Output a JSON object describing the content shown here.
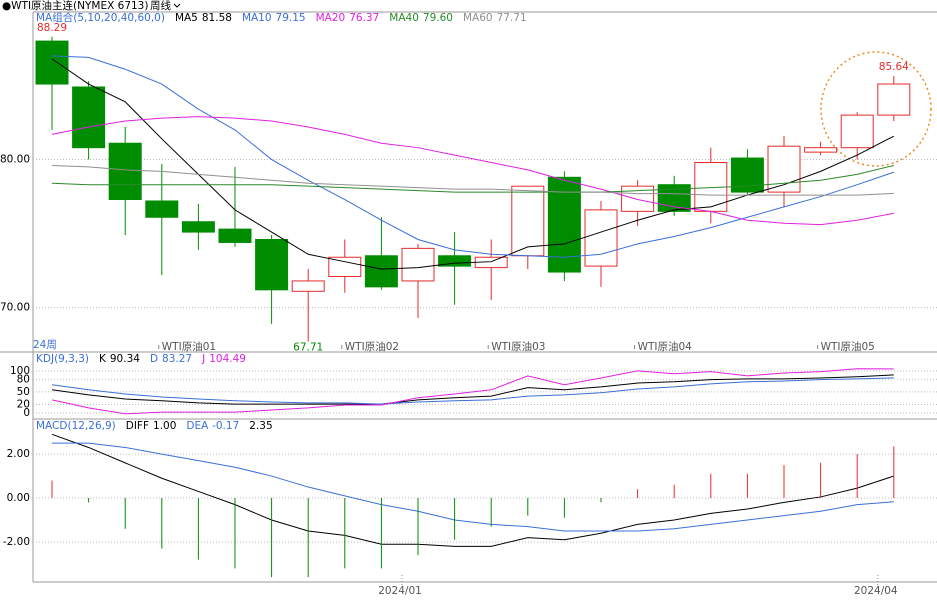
{
  "header": {
    "instrument": "●WTI原油主连(NYMEX 6713)",
    "period": "周线"
  },
  "chart_data": [
    {
      "type": "candlestick",
      "title": "MA组合(5,10,20,40,60,0)",
      "period_label": "24周",
      "categories": [
        null,
        null,
        null,
        "WTI原油01",
        null,
        null,
        null,
        null,
        "WTI原油02",
        null,
        null,
        null,
        "WTI原油03",
        null,
        null,
        null,
        "WTI原油04",
        null,
        null,
        null,
        null,
        "WTI原油05",
        null,
        null
      ],
      "open": [
        88.0,
        84.9,
        81.1,
        77.2,
        75.8,
        75.3,
        74.6,
        71.1,
        72.1,
        73.5,
        71.8,
        73.5,
        72.7,
        73.5,
        78.8,
        72.8,
        76.5,
        78.3,
        76.5,
        80.1,
        77.8,
        80.5,
        80.8,
        83.0
      ],
      "high": [
        88.29,
        85.3,
        82.2,
        79.7,
        77.0,
        79.5,
        74.9,
        72.6,
        74.6,
        76.1,
        74.3,
        75.1,
        74.6,
        78.2,
        79.2,
        77.2,
        78.6,
        78.9,
        80.8,
        80.7,
        81.6,
        81.2,
        83.2,
        85.64
      ],
      "low": [
        82.0,
        80.0,
        74.9,
        72.2,
        73.9,
        74.1,
        68.9,
        67.71,
        71.0,
        71.2,
        69.3,
        70.2,
        70.5,
        72.6,
        71.8,
        71.4,
        75.5,
        76.2,
        75.7,
        77.6,
        76.8,
        80.3,
        80.0,
        82.6
      ],
      "close": [
        85.1,
        80.8,
        77.3,
        76.1,
        75.1,
        74.4,
        71.2,
        71.8,
        73.4,
        71.4,
        74.0,
        72.8,
        73.4,
        78.2,
        72.4,
        76.6,
        78.2,
        76.5,
        79.8,
        77.8,
        80.9,
        80.8,
        83.0,
        85.1
      ],
      "up_color": "#e32b2b",
      "down_color": "#008c00",
      "series": [
        {
          "name": "MA5",
          "last_label": "81.58",
          "color": "#000000",
          "values": [
            86.8,
            85.1,
            83.9,
            81.4,
            79.0,
            76.6,
            75.1,
            73.6,
            73.1,
            72.6,
            72.7,
            73.0,
            73.1,
            74.1,
            74.3,
            75.1,
            75.9,
            76.6,
            76.8,
            77.6,
            78.3,
            79.2,
            80.3,
            81.58
          ]
        },
        {
          "name": "MA10",
          "last_label": "79.15",
          "color": "#3a6fd8",
          "values": [
            87.0,
            86.9,
            86.1,
            85.1,
            83.4,
            82.0,
            80.0,
            78.6,
            77.3,
            75.9,
            74.6,
            73.9,
            73.6,
            73.5,
            73.4,
            73.6,
            74.3,
            74.8,
            75.4,
            76.1,
            76.8,
            77.5,
            78.3,
            79.15
          ]
        },
        {
          "name": "MA20",
          "last_label": "76.37",
          "color": "#e020e0",
          "values": [
            81.7,
            82.2,
            82.6,
            82.8,
            82.9,
            82.8,
            82.6,
            82.2,
            81.7,
            81.1,
            80.8,
            80.3,
            79.8,
            79.3,
            78.6,
            78.0,
            77.3,
            76.8,
            76.5,
            75.9,
            75.7,
            75.6,
            75.9,
            76.37
          ]
        },
        {
          "name": "MA40",
          "last_label": "79.60",
          "color": "#2a8a2a",
          "values": [
            78.4,
            78.3,
            78.3,
            78.3,
            78.3,
            78.3,
            78.3,
            78.2,
            78.1,
            78.0,
            77.9,
            77.8,
            77.8,
            77.8,
            77.8,
            77.8,
            77.9,
            78.0,
            78.1,
            78.2,
            78.4,
            78.6,
            79.0,
            79.6
          ]
        },
        {
          "name": "MA60",
          "last_label": "77.71",
          "color": "#909090",
          "values": [
            79.6,
            79.5,
            79.3,
            79.2,
            79.0,
            78.8,
            78.6,
            78.4,
            78.3,
            78.2,
            78.1,
            78.0,
            78.0,
            77.9,
            77.8,
            77.8,
            77.7,
            77.7,
            77.6,
            77.6,
            77.6,
            77.6,
            77.6,
            77.71
          ]
        }
      ],
      "annotations": [
        {
          "text": "88.29"
        },
        {
          "text": "85.64"
        },
        {
          "text": "67.71"
        }
      ],
      "ylim": [
        67.0,
        90.1
      ],
      "yticks": [
        {
          "value": 70,
          "label": "70.00"
        },
        {
          "value": 80,
          "label": "80.00"
        }
      ]
    },
    {
      "type": "line",
      "title": "KDJ(9,3,3)",
      "series": [
        {
          "name": "K",
          "last_label": "90.34",
          "color": "#000000",
          "values": [
            55,
            43,
            33,
            29,
            24,
            21,
            21,
            21,
            21,
            21,
            31,
            36,
            40,
            60,
            55,
            62,
            71,
            74,
            79,
            81,
            81,
            83,
            86,
            90.34
          ]
        },
        {
          "name": "D",
          "last_label": "83.27",
          "color": "#3a6fd8",
          "values": [
            67,
            55,
            45,
            38,
            33,
            29,
            26,
            24,
            24,
            21,
            26,
            29,
            31,
            40,
            43,
            48,
            57,
            62,
            69,
            74,
            76,
            79,
            81,
            83.27
          ]
        },
        {
          "name": "J",
          "last_label": "104.49",
          "color": "#e020e0",
          "values": [
            31,
            12,
            -2,
            2,
            2,
            2,
            7,
            12,
            19,
            19,
            36,
            45,
            55,
            88,
            67,
            83,
            100,
            93,
            98,
            88,
            95,
            98,
            105,
            104.49
          ]
        }
      ],
      "ylim": [
        -12,
        121
      ],
      "yticks": [
        100,
        80,
        50,
        20,
        0
      ]
    },
    {
      "type": "combo",
      "title": "MACD(12,26,9)",
      "categories": [
        null,
        null,
        null,
        null,
        null,
        null,
        null,
        null,
        null,
        null,
        "2024/01",
        null,
        null,
        null,
        null,
        null,
        null,
        null,
        null,
        null,
        null,
        null,
        null,
        "2024/04"
      ],
      "series": [
        {
          "name": "DIFF",
          "last_label": "1.00",
          "color": "#000000",
          "kind": "line",
          "values": [
            2.9,
            2.3,
            1.6,
            0.9,
            0.3,
            -0.3,
            -1.0,
            -1.5,
            -1.7,
            -2.1,
            -2.1,
            -2.2,
            -2.2,
            -1.8,
            -1.9,
            -1.6,
            -1.2,
            -1.0,
            -0.7,
            -0.5,
            -0.2,
            0.05,
            0.45,
            1.0
          ]
        },
        {
          "name": "DEA",
          "last_label": "-0.17",
          "color": "#3a6fd8",
          "kind": "line",
          "values": [
            2.5,
            2.5,
            2.3,
            2.0,
            1.7,
            1.4,
            1.0,
            0.5,
            0.1,
            -0.3,
            -0.6,
            -1.0,
            -1.2,
            -1.3,
            -1.5,
            -1.5,
            -1.5,
            -1.4,
            -1.2,
            -1.0,
            -0.8,
            -0.6,
            -0.3,
            -0.17
          ]
        },
        {
          "last_label": "2.35",
          "kind": "bar",
          "up_color": "#e32b2b",
          "down_color": "#008c00",
          "values": [
            0.8,
            -0.2,
            -1.4,
            -2.3,
            -2.8,
            -3.2,
            -3.6,
            -3.6,
            -3.2,
            -3.2,
            -2.6,
            -1.9,
            -1.3,
            -0.8,
            -0.9,
            -0.2,
            0.4,
            0.6,
            1.1,
            1.1,
            1.5,
            1.6,
            2.0,
            2.35
          ]
        }
      ],
      "ylim": [
        -3.82,
        3.55
      ],
      "yticks": [
        {
          "value": 2,
          "label": "2.00"
        },
        {
          "value": 0,
          "label": "0.00"
        },
        {
          "value": -2,
          "label": "-2.00"
        }
      ]
    }
  ]
}
